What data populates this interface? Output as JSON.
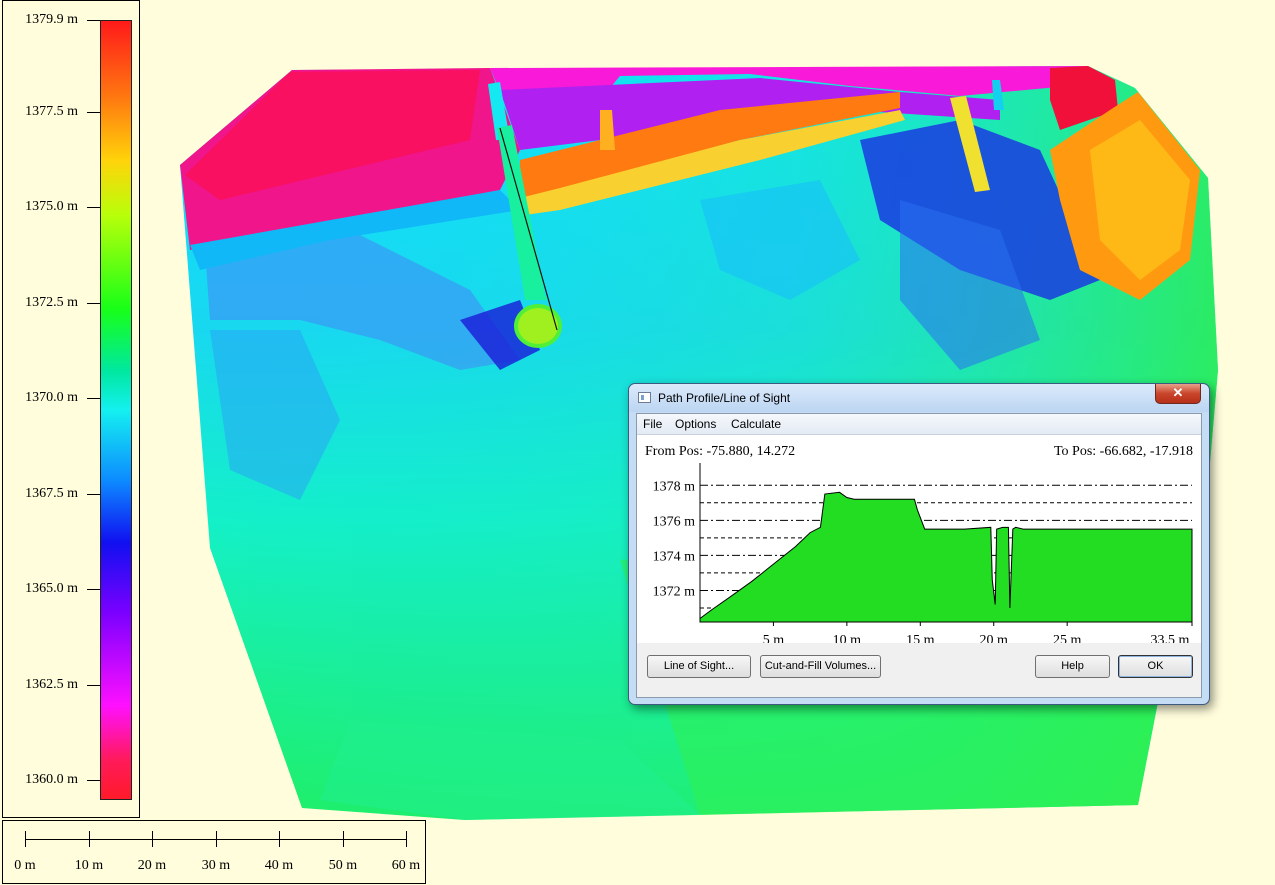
{
  "legend": {
    "labels": [
      "1379.9 m",
      "1377.5 m",
      "1375.0 m",
      "1372.5 m",
      "1370.0 m",
      "1367.5 m",
      "1365.0 m",
      "1362.5 m",
      "1360.0 m"
    ]
  },
  "scale_bar": {
    "labels": [
      "0 m",
      "10 m",
      "20 m",
      "30 m",
      "40 m",
      "50 m",
      "60 m"
    ]
  },
  "dialog": {
    "title": "Path Profile/Line of Sight",
    "close_glyph": "✕",
    "icon": "window-icon",
    "menu": [
      "File",
      "Options",
      "Calculate"
    ],
    "from_pos": "From Pos: -75.880, 14.272",
    "to_pos": "To Pos: -66.682, -17.918",
    "buttons": {
      "line_of_sight": "Line of Sight...",
      "cut_and_fill": "Cut-and-Fill Volumes...",
      "help": "Help",
      "ok": "OK"
    }
  },
  "colors": {
    "background": "#fffddb",
    "profile_fill": "#22dd22",
    "dialog_frame": "#c4dcf4"
  },
  "chart_data": {
    "type": "area",
    "x_unit": "m",
    "y_unit": "m",
    "xlim": [
      0,
      33.5
    ],
    "ylim": [
      1370.2,
      1378.7
    ],
    "x_tick_labels": [
      "5 m",
      "10 m",
      "15 m",
      "20 m",
      "25 m",
      "33.5 m"
    ],
    "x_ticks": [
      5,
      10,
      15,
      20,
      25,
      33.5
    ],
    "y_tick_labels": [
      "1378 m",
      "1376 m",
      "1374 m",
      "1372 m"
    ],
    "y_ticks": [
      1378,
      1376,
      1374,
      1372
    ],
    "grid": true,
    "profile": {
      "x": [
        0,
        0.8,
        2.0,
        3.5,
        5.0,
        6.5,
        7.5,
        8.2,
        8.5,
        9.5,
        10.0,
        10.5,
        12.0,
        13.5,
        14.6,
        14.8,
        15.3,
        16.0,
        18.0,
        19.8,
        19.9,
        20.1,
        20.2,
        20.6,
        21.0,
        21.1,
        21.3,
        21.5,
        22.0,
        24.0,
        26.0,
        28.0,
        30.0,
        32.0,
        33.5
      ],
      "y": [
        1370.4,
        1370.9,
        1371.6,
        1372.5,
        1373.5,
        1374.5,
        1375.3,
        1375.6,
        1377.5,
        1377.6,
        1377.3,
        1377.2,
        1377.2,
        1377.2,
        1377.2,
        1376.6,
        1375.5,
        1375.5,
        1375.5,
        1375.6,
        1372.6,
        1371.2,
        1375.5,
        1375.6,
        1375.6,
        1371.0,
        1375.5,
        1375.6,
        1375.5,
        1375.5,
        1375.5,
        1375.5,
        1375.5,
        1375.5,
        1375.5
      ]
    }
  }
}
